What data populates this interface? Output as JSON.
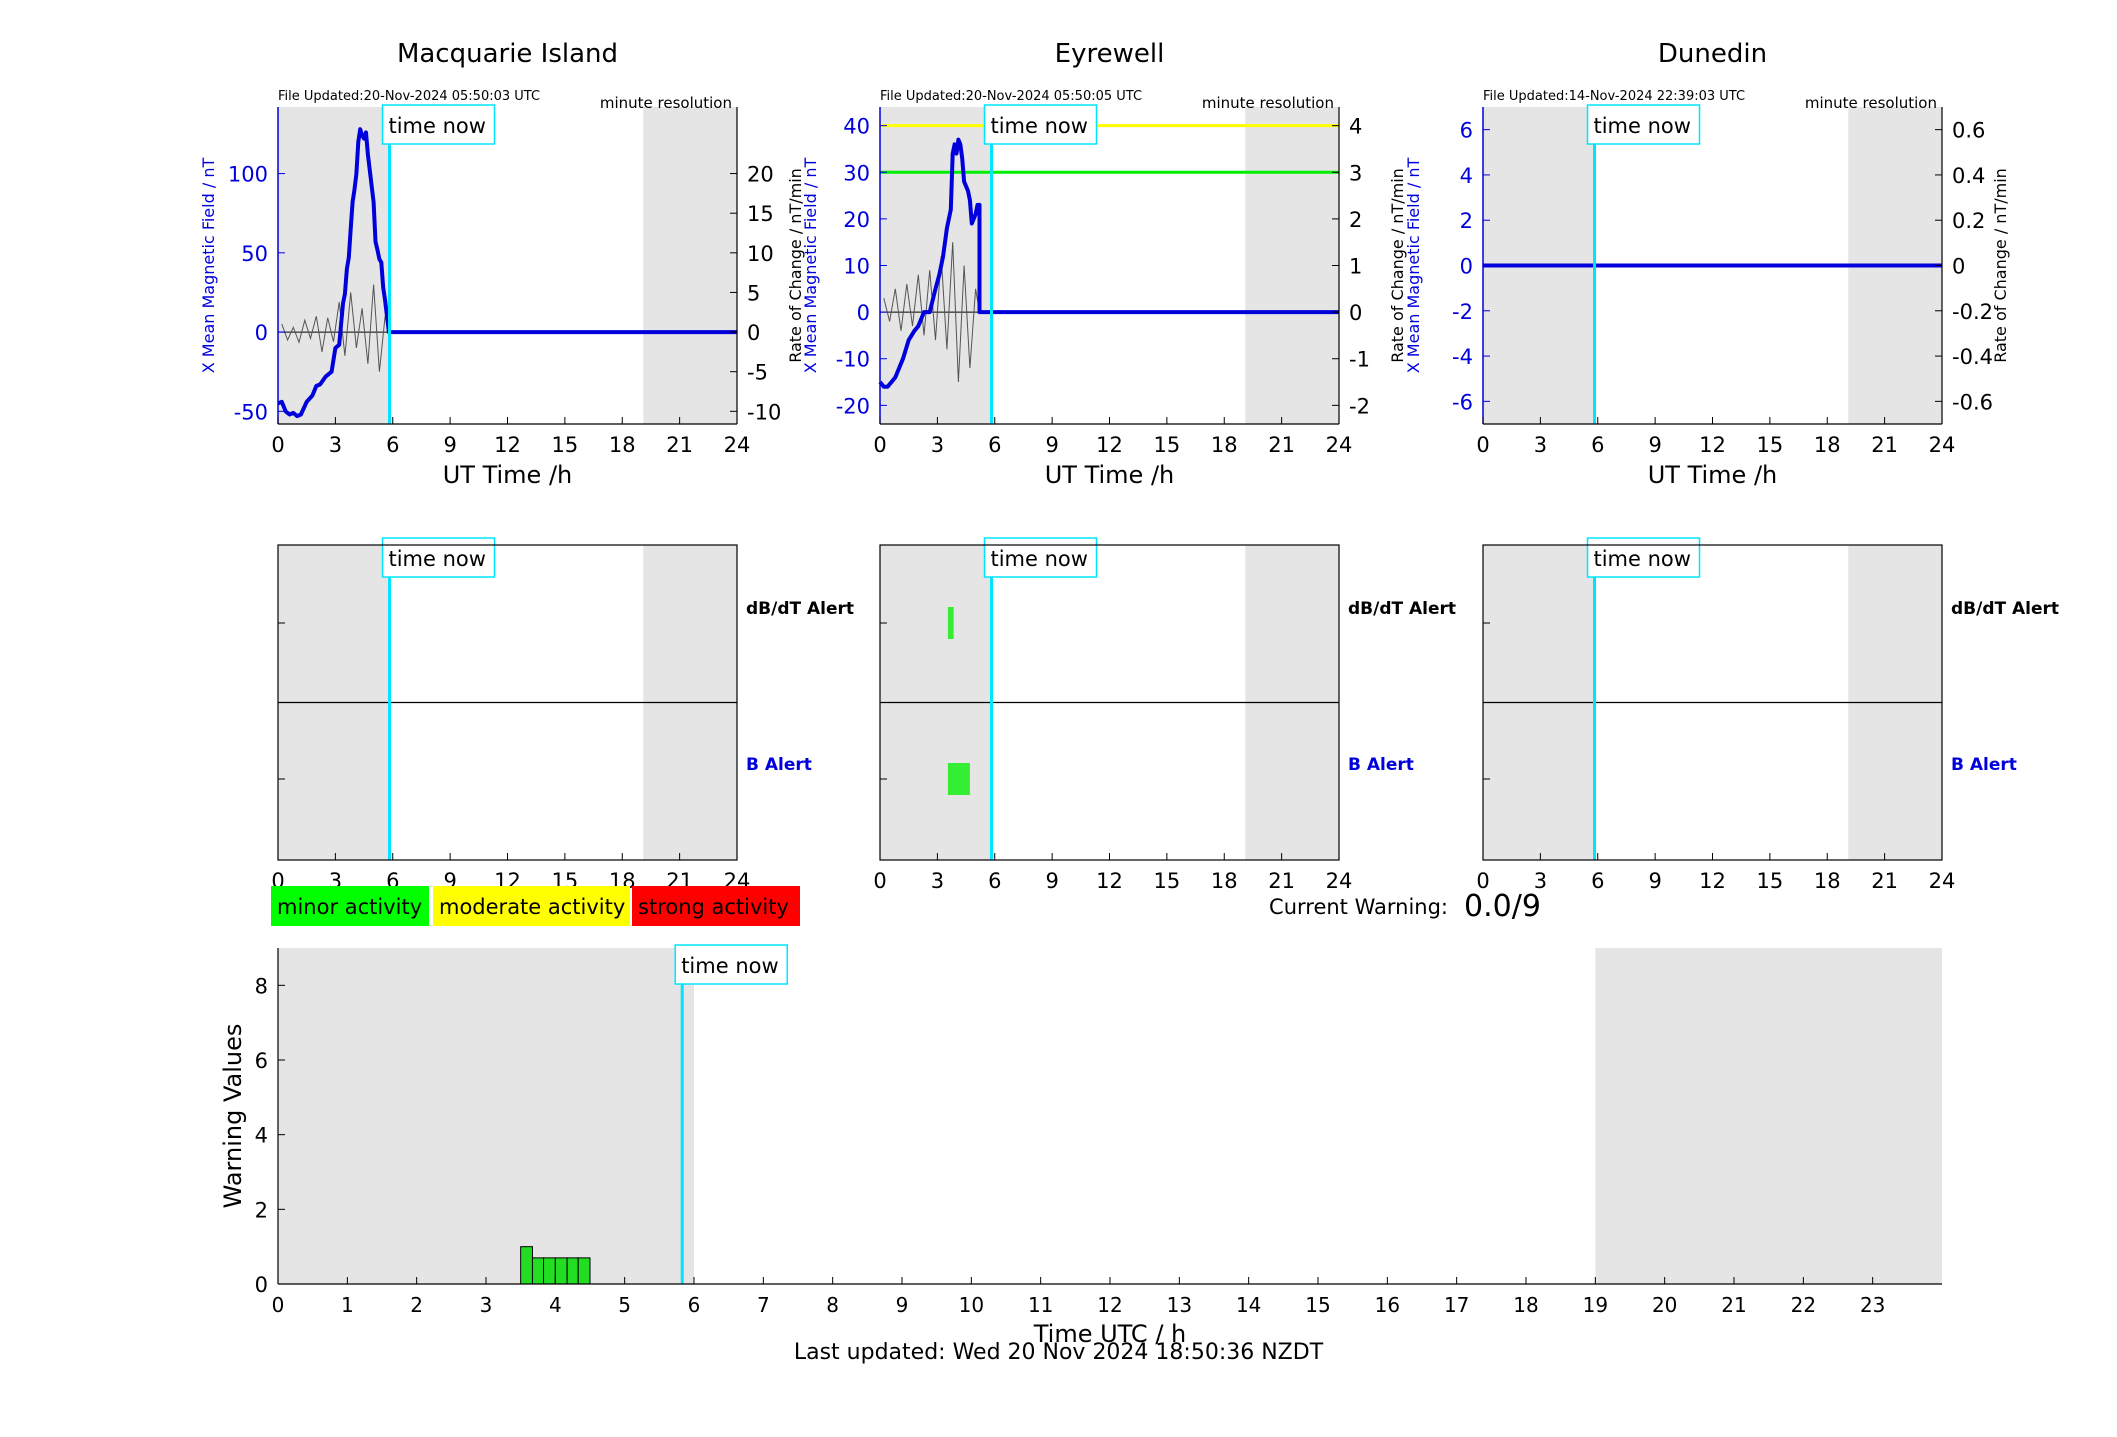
{
  "colors": {
    "shade": "#e5e5e5",
    "now_line": "#00e5ff",
    "field": "#0000dd",
    "rate": "#555555",
    "minor": "#00ff00",
    "moderate": "#ffff00",
    "strong": "#ff0000",
    "alert_bar": "#33ee33",
    "warning_bar": "#22dd22"
  },
  "chart_data": [
    {
      "type": "line",
      "title": "Macquarie Island",
      "file_updated": "File Updated:20-Nov-2024 05:50:03 UTC",
      "resolution_label": "minute resolution",
      "xlabel": "UT Time /h",
      "ylabel": "X Mean Magnetic Field / nT",
      "y2label": "Rate of Change / nT/min",
      "xlim": [
        0,
        24
      ],
      "xticks": [
        0,
        3,
        6,
        9,
        12,
        15,
        18,
        21,
        24
      ],
      "ylim": [
        -58,
        142
      ],
      "yticks": [
        -50,
        0,
        50,
        100
      ],
      "y2lim": [
        -11.6,
        28.4
      ],
      "y2ticks": [
        -10,
        -5,
        0,
        5,
        10,
        15,
        20
      ],
      "time_now": 5.83,
      "time_now_label": "time now",
      "night_shading": [
        [
          0,
          5.9
        ],
        [
          19.1,
          24
        ]
      ],
      "series": [
        {
          "role": "field",
          "x": [
            0,
            0.2,
            0.4,
            0.6,
            0.8,
            1.0,
            1.2,
            1.5,
            1.8,
            2.0,
            2.2,
            2.5,
            2.8,
            3.0,
            3.2,
            3.4,
            3.5,
            3.6,
            3.7,
            3.8,
            3.9,
            4.0,
            4.1,
            4.2,
            4.3,
            4.4,
            4.5,
            4.6,
            4.7,
            4.8,
            4.9,
            5.0,
            5.1,
            5.2,
            5.3,
            5.4,
            5.5,
            5.6,
            5.7,
            5.8,
            6,
            24
          ],
          "y": [
            -45,
            -44,
            -50,
            -52,
            -51,
            -53,
            -52,
            -44,
            -40,
            -34,
            -33,
            -28,
            -25,
            -10,
            -8,
            18,
            24,
            40,
            47,
            65,
            82,
            90,
            100,
            120,
            128,
            124,
            122,
            126,
            112,
            102,
            92,
            82,
            57,
            52,
            46,
            44,
            28,
            20,
            10,
            0,
            0,
            0
          ]
        },
        {
          "role": "rate",
          "x": [
            0.2,
            0.5,
            0.8,
            1.1,
            1.4,
            1.7,
            2.0,
            2.3,
            2.6,
            2.9,
            3.2,
            3.5,
            3.8,
            4.1,
            4.4,
            4.7,
            5.0,
            5.3,
            5.6,
            5.8,
            6,
            24
          ],
          "y": [
            1,
            -1,
            0.6,
            -1.3,
            1.5,
            -0.8,
            2,
            -2.5,
            1.8,
            -1.2,
            3.8,
            -3,
            5,
            -2,
            3,
            -4,
            6,
            -5,
            2,
            0,
            0,
            0
          ]
        }
      ]
    },
    {
      "type": "line",
      "title": "Eyrewell",
      "file_updated": "File Updated:20-Nov-2024 05:50:05 UTC",
      "resolution_label": "minute resolution",
      "xlabel": "UT Time /h",
      "ylabel": "X Mean Magnetic Field / nT",
      "y2label": "Rate of Change / nT/min",
      "xlim": [
        0,
        24
      ],
      "xticks": [
        0,
        3,
        6,
        9,
        12,
        15,
        18,
        21,
        24
      ],
      "ylim": [
        -24,
        44
      ],
      "yticks": [
        -20,
        -10,
        0,
        10,
        20,
        30,
        40
      ],
      "y2lim": [
        -2.4,
        4.4
      ],
      "y2ticks": [
        -2,
        -1,
        0,
        1,
        2,
        3,
        4
      ],
      "time_now": 5.83,
      "time_now_label": "time now",
      "night_shading": [
        [
          0,
          5.9
        ],
        [
          19.1,
          24
        ]
      ],
      "thresholds": [
        {
          "value": 40,
          "color": "#ffff00"
        },
        {
          "value": 30,
          "color": "#00ee00"
        }
      ],
      "series": [
        {
          "role": "field",
          "x": [
            0,
            0.2,
            0.4,
            0.6,
            0.8,
            1.0,
            1.2,
            1.5,
            1.8,
            2.0,
            2.3,
            2.6,
            2.9,
            3.1,
            3.3,
            3.5,
            3.7,
            3.8,
            3.9,
            4.0,
            4.1,
            4.2,
            4.3,
            4.4,
            4.5,
            4.6,
            4.7,
            4.8,
            4.9,
            5.0,
            5.1,
            5.2,
            5.2,
            5.3,
            6,
            24
          ],
          "y": [
            -15,
            -16,
            -16,
            -15,
            -14,
            -12,
            -10,
            -6,
            -4,
            -3,
            0,
            0,
            5,
            8,
            12,
            18,
            22,
            34,
            36,
            34,
            37,
            36,
            33,
            28,
            27,
            26,
            24,
            19,
            20,
            21,
            23,
            23,
            0,
            0,
            0,
            0
          ]
        },
        {
          "role": "rate",
          "x": [
            0.2,
            0.5,
            0.8,
            1.1,
            1.4,
            1.7,
            2.0,
            2.3,
            2.6,
            2.9,
            3.2,
            3.5,
            3.8,
            4.1,
            4.4,
            4.7,
            5.0,
            5.2,
            6,
            24
          ],
          "y": [
            0.3,
            -0.2,
            0.5,
            -0.4,
            0.6,
            -0.3,
            0.8,
            -0.5,
            0.9,
            -0.6,
            1.2,
            -0.8,
            1.5,
            -1.5,
            1.0,
            -1.2,
            0.5,
            0,
            0,
            0
          ]
        }
      ]
    },
    {
      "type": "line",
      "title": "Dunedin",
      "file_updated": "File Updated:14-Nov-2024 22:39:03 UTC",
      "resolution_label": "minute resolution",
      "xlabel": "UT Time /h",
      "ylabel": "X Mean Magnetic Field / nT",
      "y2label": "Rate of Change / nT/min",
      "xlim": [
        0,
        24
      ],
      "xticks": [
        0,
        3,
        6,
        9,
        12,
        15,
        18,
        21,
        24
      ],
      "ylim": [
        -7,
        7
      ],
      "yticks": [
        -6,
        -4,
        -2,
        0,
        2,
        4,
        6
      ],
      "y2lim": [
        -0.7,
        0.7
      ],
      "y2ticks": [
        -0.6,
        -0.4,
        -0.2,
        0,
        0.2,
        0.4,
        0.6
      ],
      "time_now": 5.83,
      "time_now_label": "time now",
      "night_shading": [
        [
          0,
          5.9
        ],
        [
          19.1,
          24
        ]
      ],
      "series": [
        {
          "role": "field",
          "x": [
            0,
            24
          ],
          "y": [
            0,
            0
          ]
        },
        {
          "role": "rate",
          "x": [
            0,
            24
          ],
          "y": [
            0,
            0
          ]
        }
      ]
    },
    {
      "type": "bar",
      "station": "Macquarie Island",
      "xlim": [
        0,
        24
      ],
      "xticks": [
        0,
        3,
        6,
        9,
        12,
        15,
        18,
        21,
        24
      ],
      "time_now": 5.83,
      "time_now_label": "time now",
      "night_shading": [
        [
          0,
          5.9
        ],
        [
          19.1,
          24
        ]
      ],
      "dbdt_label": "dB/dT Alert",
      "b_label": "B Alert",
      "dbdt_alerts": [],
      "b_alerts": []
    },
    {
      "type": "bar",
      "station": "Eyrewell",
      "xlim": [
        0,
        24
      ],
      "xticks": [
        0,
        3,
        6,
        9,
        12,
        15,
        18,
        21,
        24
      ],
      "time_now": 5.83,
      "time_now_label": "time now",
      "night_shading": [
        [
          0,
          5.9
        ],
        [
          19.1,
          24
        ]
      ],
      "dbdt_label": "dB/dT Alert",
      "b_label": "B Alert",
      "dbdt_alerts": [
        [
          3.55,
          3.85
        ]
      ],
      "b_alerts": [
        [
          3.55,
          4.7
        ]
      ]
    },
    {
      "type": "bar",
      "station": "Dunedin",
      "xlim": [
        0,
        24
      ],
      "xticks": [
        0,
        3,
        6,
        9,
        12,
        15,
        18,
        21,
        24
      ],
      "time_now": 5.83,
      "time_now_label": "time now",
      "night_shading": [
        [
          0,
          5.9
        ],
        [
          19.1,
          24
        ]
      ],
      "dbdt_label": "dB/dT Alert",
      "b_label": "B Alert",
      "dbdt_alerts": [],
      "b_alerts": []
    },
    {
      "type": "bar",
      "xlabel": "Time UTC / h",
      "ylabel": "Warning Values",
      "xlim": [
        0,
        24
      ],
      "xticks": [
        0,
        1,
        2,
        3,
        4,
        5,
        6,
        7,
        8,
        9,
        10,
        11,
        12,
        13,
        14,
        15,
        16,
        17,
        18,
        19,
        20,
        21,
        22,
        23
      ],
      "ylim": [
        0,
        9
      ],
      "yticks": [
        0,
        2,
        4,
        6,
        8
      ],
      "time_now": 5.83,
      "time_now_label": "time now",
      "night_shading": [
        [
          0,
          6.0
        ],
        [
          19.0,
          24
        ]
      ],
      "bars": [
        {
          "x0": 3.5,
          "x1": 3.67,
          "value": 1.0
        },
        {
          "x0": 3.67,
          "x1": 3.83,
          "value": 0.7
        },
        {
          "x0": 3.83,
          "x1": 4.0,
          "value": 0.7
        },
        {
          "x0": 4.0,
          "x1": 4.17,
          "value": 0.7
        },
        {
          "x0": 4.17,
          "x1": 4.33,
          "value": 0.7
        },
        {
          "x0": 4.33,
          "x1": 4.5,
          "value": 0.7
        }
      ]
    }
  ],
  "legend": {
    "minor": "minor activity",
    "moderate": "moderate activity",
    "strong": "strong activity"
  },
  "current_warning": {
    "label": "Current Warning:",
    "value": "0.0/9"
  },
  "footer": {
    "last_updated": "Last updated: Wed 20 Nov 2024 18:50:36 NZDT"
  }
}
